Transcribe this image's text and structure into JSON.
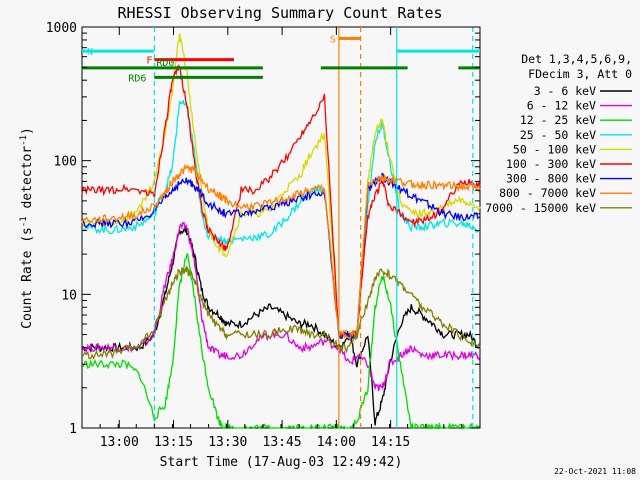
{
  "chart_data": {
    "type": "line",
    "title": "RHESSI Observing Summary Count Rates",
    "xlabel": "Start Time (17-Aug-03 12:49:42)",
    "ylabel": "Count Rate (s⁻¹ detector⁻¹)",
    "ylabel_main": "Count Rate (s",
    "ylabel_sup1": "-1",
    "ylabel_mid": " detector",
    "ylabel_sup2": "-1",
    "ylabel_end": ")",
    "yscale": "log",
    "ylim": [
      1,
      1000
    ],
    "xlim_min": [
      0,
      110
    ],
    "x_tick_labels": [
      "13:00",
      "13:15",
      "13:30",
      "13:45",
      "14:00",
      "14:15"
    ],
    "x_tick_minutes": [
      10.3,
      25.3,
      40.3,
      55.3,
      70.3,
      85.3
    ],
    "y_tick_labels": [
      "1",
      "10",
      "100",
      "1000"
    ],
    "y_tick_values": [
      1,
      10,
      100,
      1000
    ],
    "legend_header": [
      "Det 1,3,4,5,6,9,",
      "FDecim 3, Att 0"
    ],
    "legend_placement": "right",
    "timestamp": "22-Oct-2021 11:08",
    "x_minutes": [
      0,
      4,
      8,
      12,
      16,
      20,
      23,
      25,
      27,
      29,
      31,
      33,
      35,
      38,
      40,
      44,
      48,
      52,
      56,
      60,
      63,
      67,
      71,
      74,
      76,
      79,
      81,
      83,
      85,
      88,
      91,
      94,
      97,
      100,
      104,
      107,
      110
    ],
    "series": [
      {
        "name": "3 - 6 keV",
        "color": "#000000",
        "values": [
          4,
          4,
          4,
          4,
          4,
          5,
          10,
          17,
          30,
          30,
          20,
          11,
          8,
          7,
          6,
          6,
          7,
          8,
          7,
          6,
          6,
          5,
          4,
          5,
          3,
          5,
          1.1,
          1.6,
          3,
          6,
          8,
          7,
          6,
          5,
          5,
          5,
          4
        ]
      },
      {
        "name": "6 - 12 keV",
        "color": "#e000e0",
        "values": [
          4,
          4,
          4,
          4,
          4,
          5,
          12,
          18,
          32,
          32,
          18,
          7,
          4,
          3.5,
          3.5,
          3.5,
          4.5,
          5,
          5,
          4,
          4,
          4.5,
          4,
          3,
          3.5,
          3,
          2,
          2,
          3,
          3.5,
          4,
          3.5,
          3.5,
          3.5,
          3.5,
          3.5,
          3.5
        ]
      },
      {
        "name": "12 - 25 keV",
        "color": "#00dd00",
        "values": [
          3,
          3,
          3,
          3,
          2.5,
          1.2,
          1.5,
          3,
          12,
          20,
          10,
          4,
          2,
          1.1,
          1,
          1,
          1,
          1,
          1,
          1,
          1,
          1,
          1,
          1,
          1.1,
          2,
          8,
          14,
          9,
          3,
          1,
          1,
          1,
          1,
          1,
          1,
          1
        ]
      },
      {
        "name": "25 - 50 keV",
        "color": "#00e5e5",
        "values": [
          32,
          31,
          30,
          31,
          33,
          40,
          60,
          90,
          280,
          250,
          120,
          40,
          27,
          26,
          25,
          26,
          27,
          28,
          36,
          48,
          60,
          60,
          5,
          5,
          5,
          45,
          140,
          190,
          100,
          40,
          32,
          32,
          33,
          34,
          34,
          33,
          30
        ]
      },
      {
        "name": "50 - 100 keV",
        "color": "#d7d700",
        "values": [
          35,
          34,
          34,
          36,
          45,
          70,
          160,
          350,
          900,
          450,
          160,
          60,
          30,
          22,
          20,
          40,
          40,
          42,
          60,
          75,
          110,
          160,
          5,
          5,
          5,
          70,
          160,
          200,
          110,
          50,
          40,
          40,
          42,
          45,
          50,
          48,
          45
        ]
      },
      {
        "name": "100 - 300 keV",
        "color": "#ff0000",
        "values": [
          60,
          60,
          60,
          62,
          60,
          55,
          180,
          400,
          500,
          260,
          100,
          45,
          30,
          24,
          22,
          60,
          60,
          75,
          100,
          150,
          200,
          300,
          5,
          5,
          5,
          38,
          55,
          70,
          45,
          40,
          35,
          35,
          38,
          45,
          65,
          70,
          65
        ]
      },
      {
        "name": "300 - 800 keV",
        "color": "#0000ff",
        "values": [
          34,
          34,
          34,
          34,
          36,
          42,
          52,
          60,
          68,
          70,
          66,
          56,
          48,
          42,
          40,
          40,
          42,
          44,
          48,
          52,
          55,
          58,
          5,
          5,
          5,
          60,
          70,
          75,
          70,
          62,
          55,
          50,
          45,
          40,
          38,
          38,
          38
        ]
      },
      {
        "name": "800 - 7000 keV",
        "color": "#ff7f00",
        "values": [
          36,
          36,
          37,
          38,
          40,
          46,
          58,
          70,
          80,
          88,
          85,
          72,
          62,
          55,
          50,
          45,
          46,
          48,
          52,
          56,
          60,
          62,
          5,
          5,
          5,
          65,
          72,
          75,
          72,
          70,
          67,
          66,
          66,
          65,
          64,
          63,
          62
        ]
      },
      {
        "name": "7000 - 15000 keV",
        "color": "#808000",
        "values": [
          3.5,
          3.5,
          3.6,
          3.8,
          4.2,
          5.5,
          9,
          12,
          15,
          15,
          13,
          9,
          7,
          5.5,
          5,
          5,
          5,
          5,
          5.5,
          5.5,
          5,
          5,
          4,
          4,
          5,
          9,
          13,
          15,
          14,
          12,
          10,
          8,
          7,
          6,
          5,
          4.5,
          4
        ]
      }
    ],
    "status_bars": [
      {
        "label": "N",
        "color": "#00e5e5",
        "y": 660,
        "segments": [
          [
            0,
            20
          ],
          [
            87,
            110
          ]
        ]
      },
      {
        "label": "F",
        "color": "#ff0000",
        "y": 570,
        "segments": [
          [
            20,
            42
          ]
        ]
      },
      {
        "label": "RD0",
        "color": "#008000",
        "y": 495,
        "segments": [
          [
            0,
            20
          ],
          [
            20,
            50
          ],
          [
            66,
            90
          ],
          [
            104,
            110
          ]
        ]
      },
      {
        "label": "RD6",
        "color": "#008000",
        "y": 420,
        "segments": [
          [
            20,
            50
          ]
        ]
      },
      {
        "label": "S",
        "color": "#ff7f00",
        "y": 820,
        "segments": [
          [
            71,
            77
          ]
        ]
      }
    ],
    "vlines_dashed_cyan": [
      20,
      108
    ],
    "vlines_cyan": [
      87
    ],
    "vlines_orange": [
      71
    ],
    "vlines_dashed_orange": [
      77
    ]
  }
}
